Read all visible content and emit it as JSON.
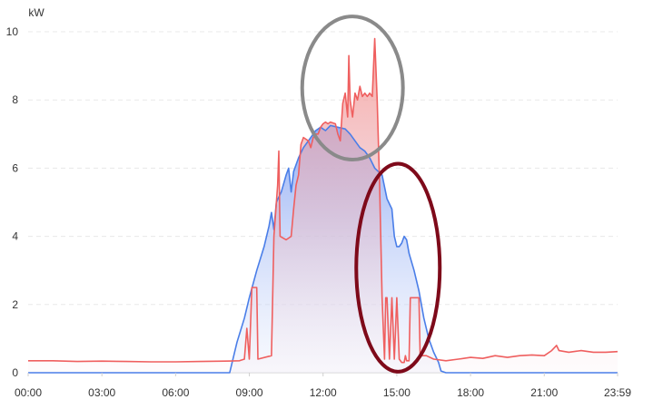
{
  "chart_data": {
    "type": "area",
    "title": "",
    "xlabel": "",
    "ylabel": "kW",
    "unit": "kW",
    "ylim": [
      0,
      10
    ],
    "y_ticks": [
      0,
      2,
      4,
      6,
      8,
      10
    ],
    "x_range_hours": [
      0,
      23.983
    ],
    "x_tick_labels": [
      "00:00",
      "03:00",
      "06:00",
      "09:00",
      "12:00",
      "15:00",
      "18:00",
      "21:00",
      "23:59"
    ],
    "x_tick_hours": [
      0,
      3,
      6,
      9,
      12,
      15,
      18,
      21,
      23.983
    ],
    "grid": "horizontal dashed",
    "legend": "none",
    "series": [
      {
        "color": "#4a7ee8",
        "fill": "gradient",
        "points": [
          [
            0,
            0
          ],
          [
            8.2,
            0
          ],
          [
            8.3,
            0.3
          ],
          [
            8.5,
            0.9
          ],
          [
            8.8,
            1.6
          ],
          [
            9.0,
            2.2
          ],
          [
            9.3,
            3.0
          ],
          [
            9.6,
            3.7
          ],
          [
            9.8,
            4.3
          ],
          [
            9.9,
            4.7
          ],
          [
            10.0,
            4.2
          ],
          [
            10.1,
            5.0
          ],
          [
            10.3,
            5.3
          ],
          [
            10.5,
            5.8
          ],
          [
            10.6,
            6.0
          ],
          [
            10.7,
            5.3
          ],
          [
            10.8,
            5.9
          ],
          [
            11.0,
            6.3
          ],
          [
            11.2,
            6.6
          ],
          [
            11.5,
            6.9
          ],
          [
            11.7,
            7.1
          ],
          [
            11.9,
            7.2
          ],
          [
            12.1,
            7.1
          ],
          [
            12.3,
            7.25
          ],
          [
            12.6,
            7.2
          ],
          [
            12.9,
            7.15
          ],
          [
            13.1,
            7.0
          ],
          [
            13.3,
            6.8
          ],
          [
            13.5,
            6.6
          ],
          [
            13.7,
            6.5
          ],
          [
            13.9,
            6.3
          ],
          [
            14.1,
            6.0
          ],
          [
            14.4,
            5.8
          ],
          [
            14.6,
            5.1
          ],
          [
            14.8,
            4.8
          ],
          [
            14.9,
            4.0
          ],
          [
            15.0,
            3.7
          ],
          [
            15.1,
            3.7
          ],
          [
            15.2,
            3.8
          ],
          [
            15.3,
            4.0
          ],
          [
            15.4,
            3.9
          ],
          [
            15.5,
            3.5
          ],
          [
            15.7,
            3.0
          ],
          [
            15.9,
            2.4
          ],
          [
            16.1,
            1.6
          ],
          [
            16.3,
            1.0
          ],
          [
            16.5,
            0.6
          ],
          [
            16.7,
            0.3
          ],
          [
            16.8,
            0.05
          ],
          [
            17.0,
            0
          ],
          [
            23.983,
            0
          ]
        ]
      },
      {
        "color": "#ef5f5f",
        "fill": "gradient",
        "points": [
          [
            0,
            0.35
          ],
          [
            1.0,
            0.35
          ],
          [
            2.0,
            0.33
          ],
          [
            3.0,
            0.34
          ],
          [
            4.0,
            0.33
          ],
          [
            5.0,
            0.32
          ],
          [
            6.0,
            0.32
          ],
          [
            7.0,
            0.33
          ],
          [
            8.0,
            0.34
          ],
          [
            8.6,
            0.35
          ],
          [
            8.8,
            0.4
          ],
          [
            8.9,
            1.3
          ],
          [
            9.0,
            0.4
          ],
          [
            9.1,
            2.5
          ],
          [
            9.3,
            2.5
          ],
          [
            9.35,
            0.4
          ],
          [
            9.9,
            0.5
          ],
          [
            10.0,
            4.0
          ],
          [
            10.15,
            5.5
          ],
          [
            10.2,
            6.5
          ],
          [
            10.25,
            4.0
          ],
          [
            10.5,
            3.9
          ],
          [
            10.7,
            4.0
          ],
          [
            10.8,
            4.8
          ],
          [
            10.9,
            5.5
          ],
          [
            11.0,
            5.8
          ],
          [
            11.1,
            6.7
          ],
          [
            11.2,
            6.9
          ],
          [
            11.4,
            6.8
          ],
          [
            11.5,
            6.6
          ],
          [
            11.6,
            6.9
          ],
          [
            11.7,
            7.0
          ],
          [
            11.8,
            7.0
          ],
          [
            11.9,
            7.2
          ],
          [
            12.0,
            7.3
          ],
          [
            12.1,
            7.35
          ],
          [
            12.2,
            7.3
          ],
          [
            12.3,
            7.35
          ],
          [
            12.5,
            7.3
          ],
          [
            12.6,
            7.0
          ],
          [
            12.7,
            6.8
          ],
          [
            12.8,
            7.9
          ],
          [
            12.9,
            8.2
          ],
          [
            13.0,
            7.5
          ],
          [
            13.05,
            9.3
          ],
          [
            13.1,
            8.0
          ],
          [
            13.2,
            7.5
          ],
          [
            13.3,
            8.2
          ],
          [
            13.4,
            8.0
          ],
          [
            13.5,
            8.4
          ],
          [
            13.6,
            8.1
          ],
          [
            13.7,
            8.2
          ],
          [
            13.8,
            8.1
          ],
          [
            13.9,
            8.2
          ],
          [
            14.0,
            8.1
          ],
          [
            14.1,
            9.8
          ],
          [
            14.2,
            8.0
          ],
          [
            14.3,
            5.5
          ],
          [
            14.4,
            2.2
          ],
          [
            14.5,
            0.4
          ],
          [
            14.55,
            2.2
          ],
          [
            14.6,
            2.2
          ],
          [
            14.7,
            0.4
          ],
          [
            14.8,
            2.2
          ],
          [
            14.9,
            0.4
          ],
          [
            15.0,
            2.2
          ],
          [
            15.1,
            0.4
          ],
          [
            15.2,
            0.3
          ],
          [
            15.3,
            0.3
          ],
          [
            15.35,
            0.5
          ],
          [
            15.4,
            0.35
          ],
          [
            15.5,
            0.35
          ],
          [
            15.55,
            2.2
          ],
          [
            15.6,
            2.2
          ],
          [
            15.9,
            2.2
          ],
          [
            15.95,
            0.5
          ],
          [
            16.2,
            0.5
          ],
          [
            16.5,
            0.4
          ],
          [
            17.0,
            0.35
          ],
          [
            17.5,
            0.4
          ],
          [
            18.0,
            0.45
          ],
          [
            18.5,
            0.42
          ],
          [
            19.0,
            0.5
          ],
          [
            19.5,
            0.45
          ],
          [
            20.0,
            0.5
          ],
          [
            20.5,
            0.52
          ],
          [
            21.0,
            0.5
          ],
          [
            21.3,
            0.65
          ],
          [
            21.5,
            0.8
          ],
          [
            21.6,
            0.65
          ],
          [
            22.0,
            0.6
          ],
          [
            22.5,
            0.65
          ],
          [
            23.0,
            0.6
          ],
          [
            23.5,
            0.6
          ],
          [
            23.983,
            0.62
          ]
        ]
      }
    ],
    "annotations": [
      {
        "shape": "ellipse",
        "color": "#8a8a8a",
        "center": [
          13.2,
          8.35
        ],
        "radii": [
          2.05,
          2.1
        ]
      },
      {
        "shape": "ellipse",
        "color": "#7e0a1a",
        "center": [
          15.05,
          3.08
        ],
        "radii": [
          1.7,
          3.05
        ]
      }
    ]
  }
}
